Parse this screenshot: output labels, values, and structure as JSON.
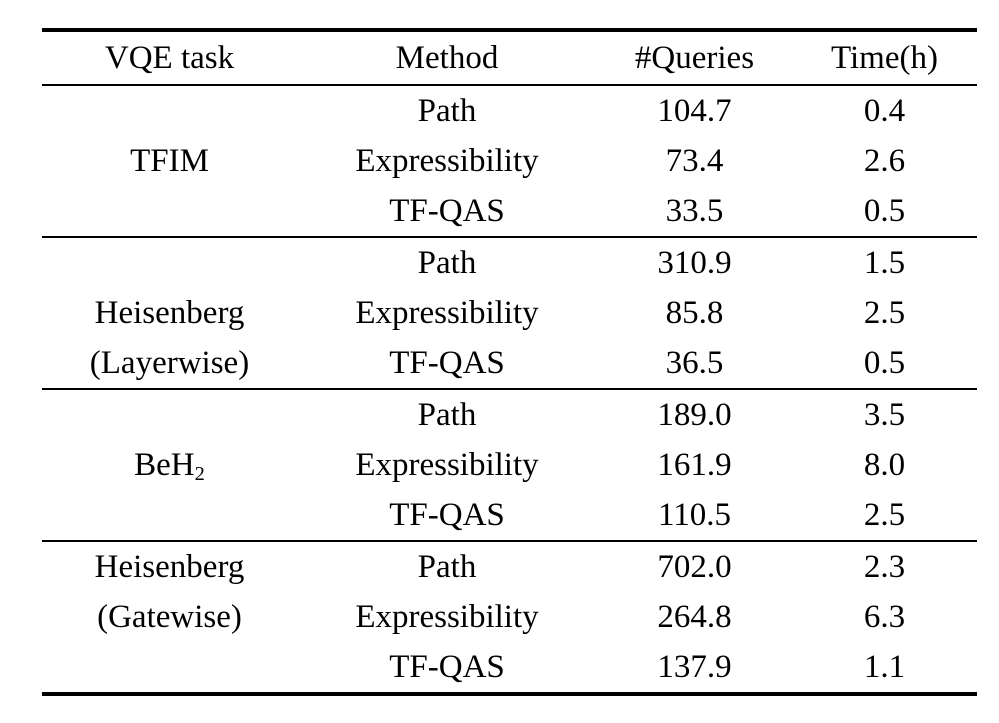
{
  "table": {
    "background": "#ffffff",
    "text_color": "#000000",
    "columns": [
      "VQE task",
      "Method",
      "#Queries",
      "Time(h)"
    ],
    "groups": [
      {
        "task": {
          "line1": "TFIM"
        },
        "rows": [
          {
            "method": "Path",
            "queries": "104.7",
            "time": "0.4"
          },
          {
            "method": "Expressibility",
            "queries": "73.4",
            "time": "2.6"
          },
          {
            "method": "TF-QAS",
            "queries": "33.5",
            "time": "0.5"
          }
        ]
      },
      {
        "task": {
          "line1": "Heisenberg",
          "line2": "(Layerwise)"
        },
        "rows": [
          {
            "method": "Path",
            "queries": "310.9",
            "time": "1.5"
          },
          {
            "method": "Expressibility",
            "queries": "85.8",
            "time": "2.5"
          },
          {
            "method": "TF-QAS",
            "queries": "36.5",
            "time": "0.5"
          }
        ]
      },
      {
        "task": {
          "base": "BeH",
          "subscript": "2"
        },
        "rows": [
          {
            "method": "Path",
            "queries": "189.0",
            "time": "3.5"
          },
          {
            "method": "Expressibility",
            "queries": "161.9",
            "time": "8.0"
          },
          {
            "method": "TF-QAS",
            "queries": "110.5",
            "time": "2.5"
          }
        ]
      },
      {
        "task": {
          "line1": "Heisenberg",
          "line2": "(Gatewise)"
        },
        "rows": [
          {
            "method": "Path",
            "queries": "702.0",
            "time": "2.3"
          },
          {
            "method": "Expressibility",
            "queries": "264.8",
            "time": "6.3"
          },
          {
            "method": "TF-QAS",
            "queries": "137.9",
            "time": "1.1"
          }
        ]
      }
    ]
  }
}
